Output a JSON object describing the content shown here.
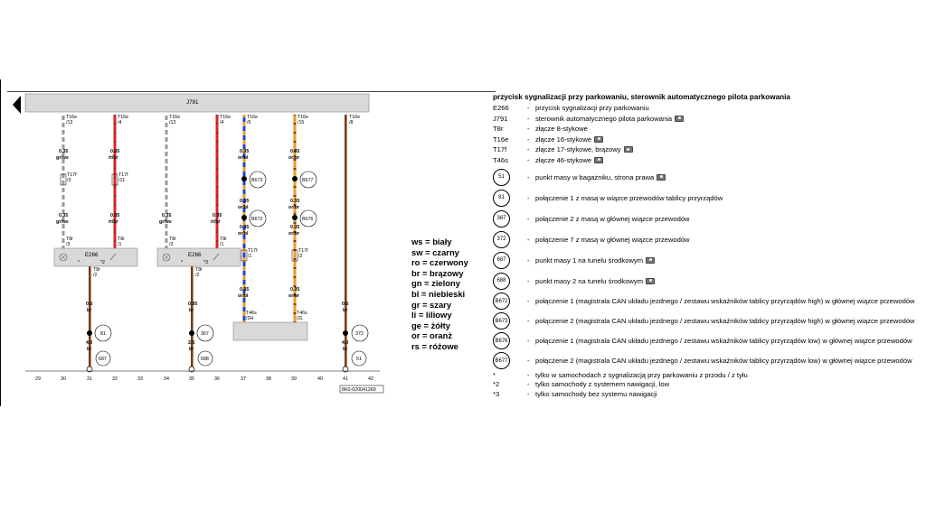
{
  "diagram": {
    "control_unit": "J791",
    "connectors": [
      {
        "id": "c1",
        "label": "T16e",
        "pin": "/13",
        "size": "0.35",
        "color": "gr/ws"
      },
      {
        "id": "c2",
        "label": "T16e",
        "pin": "/4",
        "size": "0.35",
        "color": "rt/br"
      },
      {
        "id": "c3",
        "label": "T16e",
        "pin": "/13",
        "size": "0.35",
        "color": "gr/ws"
      },
      {
        "id": "c4",
        "label": "T16e",
        "pin": "/4",
        "size": "0.35",
        "color": "rt/br"
      },
      {
        "id": "c5",
        "label": "T16e",
        "pin": "/6",
        "size": "0.35",
        "color": "or/bl"
      },
      {
        "id": "c6",
        "label": "T16e",
        "pin": "/15",
        "size": "0.35",
        "color": "or/br"
      },
      {
        "id": "c7",
        "label": "T16e",
        "pin": "/8",
        "size": "0.5",
        "color": "br"
      }
    ],
    "t17f": [
      {
        "label": "T17f",
        "pin": "/3"
      },
      {
        "label": "T17f",
        "pin": "/11"
      },
      {
        "label": "T17f",
        "pin": "/1"
      },
      {
        "label": "T17f",
        "pin": "/2"
      }
    ],
    "t8r": [
      {
        "label": "T8r",
        "pin": "/3"
      },
      {
        "label": "T8r",
        "pin": "/1"
      },
      {
        "label": "T8r",
        "pin": "/3"
      },
      {
        "label": "T8r",
        "pin": "/1"
      },
      {
        "label": "T8r",
        "pin": "/2"
      },
      {
        "label": "T8r",
        "pin": "/2"
      }
    ],
    "switches": [
      {
        "label": "E266",
        "note": "*2"
      },
      {
        "label": "E266",
        "note": "*3"
      }
    ],
    "t46s": [
      {
        "label": "T46s",
        "pin": "/2H"
      },
      {
        "label": "T46s",
        "pin": "/2L"
      }
    ],
    "wire_labels": {
      "s035": "0.35",
      "s05": "0.5",
      "s25": "2.5",
      "s40": "4.0",
      "grws": "gr/ws",
      "rtbr": "rt/br",
      "orbl": "or/bl",
      "orbr": "or/br",
      "br": "br",
      "star": "*"
    },
    "nodes": [
      "B673",
      "B672",
      "B677",
      "B676",
      "81",
      "367",
      "372",
      "687",
      "688",
      "51"
    ],
    "ruler": [
      "29",
      "30",
      "31",
      "32",
      "33",
      "34",
      "35",
      "36",
      "37",
      "38",
      "39",
      "40",
      "41",
      "42"
    ],
    "drawing_id": "8K0-020041269",
    "colors": {
      "red": "#e0202a",
      "orange": "#f09a20",
      "blue": "#2040e0",
      "gray": "#9a9a9a",
      "white": "#ffffff",
      "brown": "#7a3b12",
      "box": "#d9d9d9"
    }
  },
  "legend": [
    "ws = biały",
    "sw = czarny",
    "ro = czerwony",
    "br = brązowy",
    "gn = zielony",
    "bl = niebieski",
    "gr = szary",
    "li = liliowy",
    "ge = żółty",
    "or = oranż",
    "rs = różowe"
  ],
  "key": {
    "title": "przycisk sygnalizacji przy parkowaniu, sterownik automatycznego pilota parkowania",
    "items": [
      {
        "code": "E266",
        "text": "przycisk sygnalizacji przy parkowaniu",
        "camera": false
      },
      {
        "code": "J791",
        "text": "sterownik automatycznego pilota parkowania",
        "camera": true
      },
      {
        "code": "T8r",
        "text": "złącze 8-stykowe",
        "camera": false
      },
      {
        "code": "T16e",
        "text": "złącze 16-stykowe",
        "camera": true
      },
      {
        "code": "T17f",
        "text": "złącze 17-stykowe, brązowy",
        "camera": true
      },
      {
        "code": "T46s",
        "text": "złącze 46-stykowe",
        "camera": true
      }
    ],
    "circles": [
      {
        "code": "51",
        "text": "punkt masy w bagażniku, strona prawa",
        "camera": true
      },
      {
        "code": "81",
        "text": "połączenie 1 z masą w wiązce przewodów tablicy przyrządów",
        "camera": false
      },
      {
        "code": "367",
        "text": "połączenie 2 z masą w głównej wiązce przewodów",
        "camera": false
      },
      {
        "code": "372",
        "text": "połączenie 7 z masą w głównej wiązce przewodów",
        "camera": false
      },
      {
        "code": "687",
        "text": "punkt masy 1 na tunelu środkowym",
        "camera": true
      },
      {
        "code": "688",
        "text": "punkt masy 2 na tunelu środkowym",
        "camera": true
      },
      {
        "code": "B672",
        "text": "połączenie 1 (magistrala CAN układu jezdnego / zestawu wskaźników tablicy przyrządów high) w głównej wiązce przewodów",
        "camera": false
      },
      {
        "code": "B673",
        "text": "połączenie 2 (magistrala CAN układu jezdnego / zestawu wskaźników tablicy przyrządów high) w głównej wiązce przewodów",
        "camera": false
      },
      {
        "code": "B676",
        "text": "połączenie 1 (magistrala CAN układu jezdnego / zestawu wskaźników tablicy przyrządów low) w głównej wiązce przewodów",
        "camera": false
      },
      {
        "code": "B677",
        "text": "połączenie 2 (magistrala CAN układu jezdnego / zestawu wskaźników tablicy przyrządów low) w głównej wiązce przewodów",
        "camera": false
      }
    ],
    "notes": [
      {
        "mark": "*",
        "text": "tylko w samochodach z sygnalizacją przy parkowaniu z przodu / z tyłu"
      },
      {
        "mark": "*2",
        "text": "tylko samochody z systemem nawigacji, low"
      },
      {
        "mark": "*3",
        "text": "tylko samochody bez systemu nawigacji"
      }
    ],
    "sep": "-"
  }
}
